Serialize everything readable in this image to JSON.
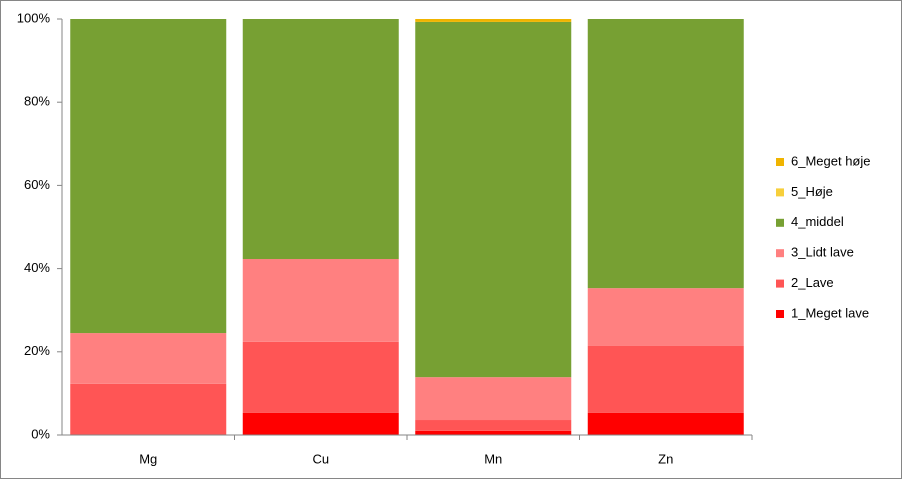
{
  "chart_data": {
    "type": "stacked_bar",
    "categories": [
      "Mg",
      "Cu",
      "Mn",
      "Zn"
    ],
    "series": [
      {
        "name": "1_Meget lave",
        "color": "#ff0000",
        "values": [
          0,
          5.3,
          1.0,
          5.3
        ]
      },
      {
        "name": "2_Lave",
        "color": "#ff5555",
        "values": [
          12.3,
          17.1,
          2.6,
          16.1
        ]
      },
      {
        "name": "3_Lidt lave",
        "color": "#ff8080",
        "values": [
          12.2,
          19.9,
          10.3,
          13.9
        ]
      },
      {
        "name": "4_middel",
        "color": "#77a033",
        "values": [
          75.5,
          57.7,
          85.4,
          64.7
        ]
      },
      {
        "name": "5_Høje",
        "color": "#f7cf3b",
        "values": [
          0,
          0,
          0,
          0
        ]
      },
      {
        "name": "6_Meget høje",
        "color": "#f0b400",
        "values": [
          0,
          0,
          0.7,
          0
        ]
      }
    ],
    "ylim": [
      0,
      100
    ],
    "yticks": [
      {
        "value": 0,
        "label": "0%"
      },
      {
        "value": 20,
        "label": "20%"
      },
      {
        "value": 40,
        "label": "40%"
      },
      {
        "value": 60,
        "label": "60%"
      },
      {
        "value": 80,
        "label": "80%"
      },
      {
        "value": 100,
        "label": "100%"
      }
    ],
    "grid": false,
    "legend": "right"
  }
}
